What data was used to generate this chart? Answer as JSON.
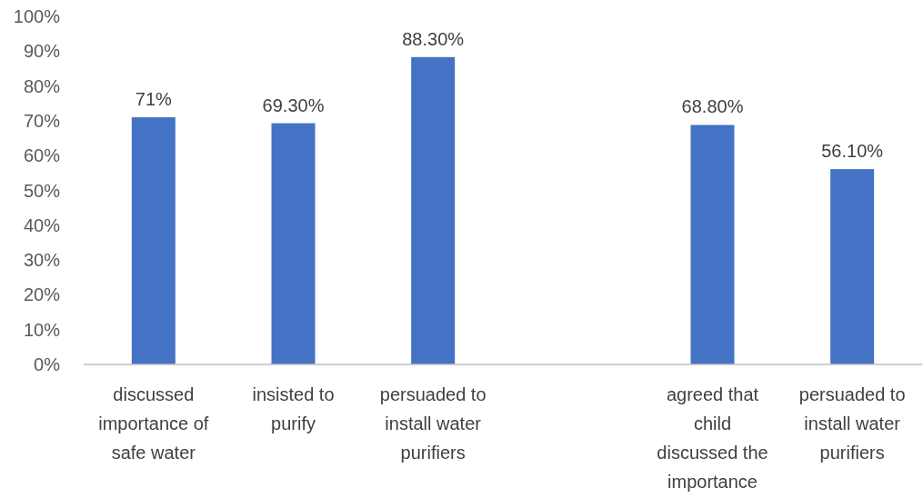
{
  "chart_data": {
    "type": "bar",
    "categories": [
      "discussed importance of safe water",
      "insisted to purify",
      "persuaded to install water purifiers",
      null,
      "agreed that child discussed the importance",
      "persuaded to install water purifiers"
    ],
    "values": [
      71,
      69.3,
      88.3,
      null,
      68.8,
      56.1
    ],
    "value_labels": [
      "71%",
      "69.30%",
      "88.30%",
      null,
      "68.80%",
      "56.10%"
    ],
    "color": "#4472c4",
    "ylim": [
      0,
      100
    ],
    "yticks": [
      {
        "value": 0,
        "label": "0%"
      },
      {
        "value": 10,
        "label": "10%"
      },
      {
        "value": 20,
        "label": "20%"
      },
      {
        "value": 30,
        "label": "30%"
      },
      {
        "value": 40,
        "label": "40%"
      },
      {
        "value": 50,
        "label": "50%"
      },
      {
        "value": 60,
        "label": "60%"
      },
      {
        "value": 70,
        "label": "70%"
      },
      {
        "value": 80,
        "label": "80%"
      },
      {
        "value": 90,
        "label": "90%"
      },
      {
        "value": 100,
        "label": "100%"
      }
    ],
    "grid": false
  }
}
